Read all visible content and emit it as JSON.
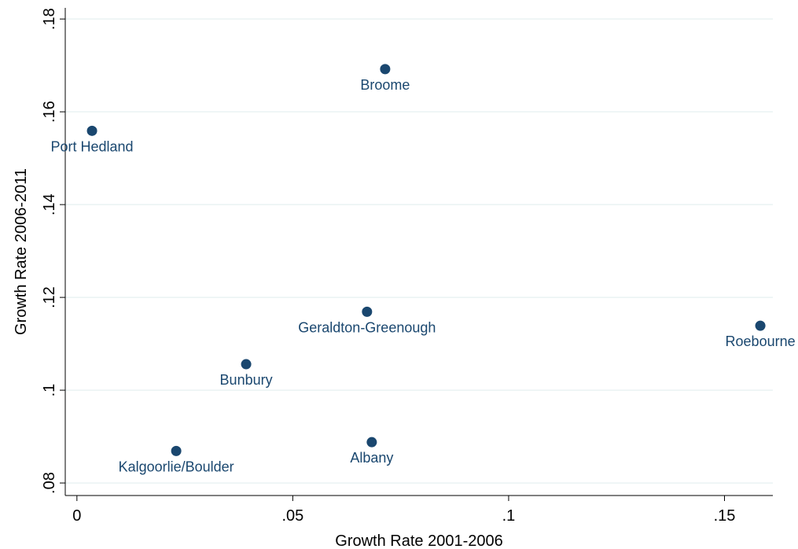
{
  "chart_data": {
    "type": "scatter",
    "x_label": "Growth Rate 2001-2006",
    "y_label": "Growth Rate 2006-2011",
    "labels": [
      "Port Hedland",
      "Broome",
      "Geraldton-Greenough",
      "Roebourne",
      "Bunbury",
      "Kalgoorlie/Boulder",
      "Albany"
    ],
    "x": [
      0.0035,
      0.0714,
      0.0672,
      0.1583,
      0.0392,
      0.023,
      0.0683
    ],
    "values": [
      0.1559,
      0.1692,
      0.1169,
      0.1139,
      0.1056,
      0.0869,
      0.0888
    ],
    "color": "#1a476f",
    "xlim": [
      -0.0027,
      0.1612
    ],
    "ylim": [
      0.0773,
      0.1824
    ],
    "xticks": [
      {
        "value": 0,
        "label": "0"
      },
      {
        "value": 0.05,
        "label": ".05"
      },
      {
        "value": 0.1,
        "label": ".1"
      },
      {
        "value": 0.15,
        "label": ".15"
      }
    ],
    "yticks": [
      {
        "value": 0.08,
        "label": ".08"
      },
      {
        "value": 0.1,
        "label": ".1"
      },
      {
        "value": 0.12,
        "label": ".12"
      },
      {
        "value": 0.14,
        "label": ".14"
      },
      {
        "value": 0.16,
        "label": ".16"
      },
      {
        "value": 0.18,
        "label": ".18"
      }
    ],
    "grid": true
  }
}
